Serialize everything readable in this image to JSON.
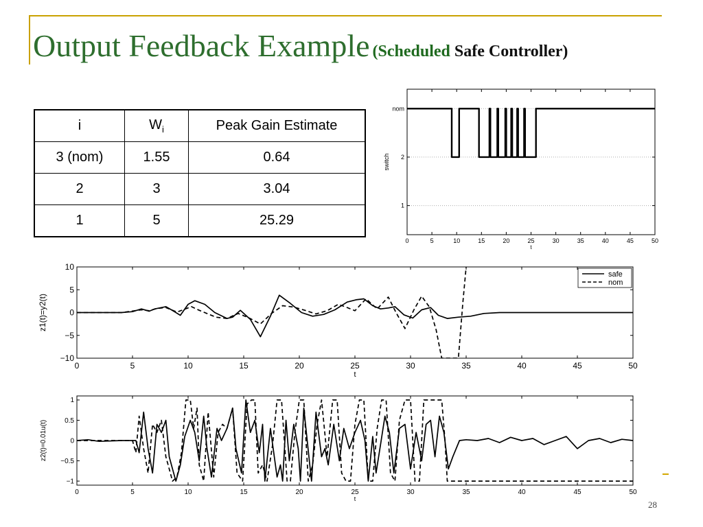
{
  "slide": {
    "title": "Output Feedback Example",
    "subtitle_open": "(",
    "subtitle_part1": "Scheduled",
    "subtitle_part2": " Safe Controller)",
    "slide_number": "28",
    "accent_color": "#c9a100",
    "title_color": "#2e6e2e"
  },
  "table": {
    "headers": [
      "i",
      "W",
      "Peak Gain Estimate"
    ],
    "header_w_subscript": "i",
    "rows": [
      [
        "3 (nom)",
        "1.55",
        "0.64"
      ],
      [
        "2",
        "3",
        "3.04"
      ],
      [
        "1",
        "5",
        "25.29"
      ]
    ]
  },
  "chart_data": [
    {
      "type": "line",
      "ylabel": "switch",
      "xlabel": "t",
      "xlim": [
        0,
        50
      ],
      "xticks": [
        0,
        5,
        10,
        15,
        20,
        25,
        30,
        35,
        40,
        45,
        50
      ],
      "yticks": [
        {
          "value": 1,
          "label": "1"
        },
        {
          "value": 2,
          "label": "2"
        },
        {
          "value": 3,
          "label": "nom"
        }
      ],
      "ylim": [
        0.4,
        3.4
      ],
      "grid": "horizontal dotted",
      "series": [
        {
          "x": [
            0,
            9,
            9,
            10.5,
            10.5,
            14.5,
            14.5,
            16.6,
            16.6,
            16.8,
            16.8,
            18.2,
            18.2,
            18.4,
            18.4,
            19.8,
            19.8,
            20,
            20,
            21,
            21,
            21.2,
            21.2,
            22.2,
            22.2,
            22.4,
            22.4,
            23.6,
            23.6,
            23.8,
            23.8,
            26,
            26,
            50
          ],
          "y": [
            3,
            3,
            2,
            2,
            3,
            3,
            2,
            2,
            3,
            3,
            2,
            2,
            3,
            3,
            2,
            2,
            3,
            3,
            2,
            2,
            3,
            3,
            2,
            2,
            3,
            3,
            2,
            2,
            3,
            3,
            2,
            2,
            3,
            3
          ]
        }
      ]
    },
    {
      "type": "line",
      "ylabel": "z1(t)=y2(t)",
      "xlabel": "t",
      "xlim": [
        0,
        50
      ],
      "ylim": [
        -10,
        10
      ],
      "xticks": [
        0,
        5,
        10,
        15,
        20,
        25,
        30,
        35,
        40,
        45,
        50
      ],
      "yticks": [
        -10,
        -5,
        0,
        5,
        10
      ],
      "legend": "top-right",
      "series": [
        {
          "name": "safe",
          "style": "solid",
          "x": [
            0,
            2,
            4,
            5,
            5.8,
            6.5,
            7,
            8,
            8.5,
            9.3,
            10,
            10.6,
            11.5,
            12.4,
            13.5,
            14,
            14.7,
            15.6,
            16.5,
            17.4,
            18.2,
            19.1,
            20.2,
            21.2,
            22.2,
            23.2,
            24.3,
            25.1,
            25.8,
            26.6,
            27.3,
            28,
            28.6,
            29.4,
            30.2,
            31,
            31.8,
            32.5,
            33.3,
            34.3,
            35.4,
            36.6,
            38,
            40,
            45,
            50
          ],
          "y": [
            0,
            0,
            0,
            0.2,
            0.8,
            0.3,
            0.8,
            1.3,
            0.6,
            -0.6,
            1.8,
            2.6,
            1.8,
            0,
            -1.3,
            -1,
            0.5,
            -1.5,
            -5.3,
            -0.8,
            3.8,
            2.2,
            0,
            -0.8,
            -0.4,
            0.6,
            2.3,
            2.8,
            3,
            1.5,
            0.8,
            1,
            1.3,
            -0.5,
            -1.2,
            0.6,
            1.1,
            -0.6,
            -1.3,
            -1,
            -0.8,
            -0.2,
            0,
            0,
            0,
            0
          ]
        },
        {
          "name": "nom",
          "style": "dashed",
          "x": [
            0,
            4,
            5.8,
            6.5,
            7.2,
            8,
            9,
            10.3,
            11,
            12.5,
            13.5,
            14.5,
            15.5,
            16.5,
            17.5,
            18.5,
            19.5,
            20.5,
            21.5,
            22.5,
            23.5,
            24.2,
            25,
            26,
            27,
            28,
            28.7,
            29.5,
            30.3,
            31,
            31.7,
            32.3,
            32.8,
            33.2,
            33.8,
            34.3,
            34.7,
            35
          ],
          "y": [
            0,
            0,
            0.6,
            0.4,
            0.9,
            1.1,
            0.1,
            1.3,
            0.5,
            -1,
            -1.3,
            -0.2,
            -1.2,
            -2.5,
            -0.2,
            1.5,
            1.2,
            0.5,
            -0.3,
            0.4,
            1.8,
            1.2,
            0.4,
            3,
            0.8,
            3.4,
            0,
            -3.5,
            0.6,
            3.6,
            1.2,
            -3.8,
            -10,
            -10,
            -10,
            -10,
            2,
            10
          ]
        }
      ]
    },
    {
      "type": "line",
      "ylabel": "z2(t)=0.01u(t)",
      "xlabel": "t",
      "xlim": [
        0,
        50
      ],
      "ylim": [
        -1.1,
        1.1
      ],
      "xticks": [
        0,
        5,
        10,
        15,
        20,
        25,
        30,
        35,
        40,
        45,
        50
      ],
      "yticks": [
        -1,
        -0.5,
        0,
        0.5,
        1
      ],
      "series": [
        {
          "name": "safe",
          "style": "solid",
          "x": [
            0,
            1,
            2,
            4,
            5,
            5.3,
            5.6,
            6,
            6.4,
            6.8,
            7.2,
            7.6,
            8,
            8.3,
            8.6,
            8.9,
            9.3,
            9.7,
            10.2,
            10.6,
            11,
            11.4,
            11.7,
            12.1,
            12.6,
            13,
            13.5,
            14,
            14.3,
            14.8,
            15.2,
            15.6,
            16,
            16.4,
            16.7,
            16.9,
            17.4,
            18,
            18.3,
            18.5,
            18.8,
            19.1,
            19.5,
            19.9,
            20.1,
            20.4,
            20.9,
            21.1,
            21.5,
            22,
            22.3,
            22.6,
            23.1,
            23.6,
            24,
            24.5,
            25,
            25.5,
            25.9,
            26.2,
            26.6,
            26.9,
            27.3,
            27.7,
            28.1,
            28.5,
            29,
            29.5,
            30,
            30.5,
            31,
            31.4,
            31.8,
            32.2,
            32.6,
            33,
            33.4,
            33.8,
            34.4,
            35,
            36,
            37,
            38,
            39,
            40,
            41,
            42,
            43,
            44,
            45,
            46,
            47,
            48,
            49,
            50
          ],
          "y": [
            0,
            0.02,
            -0.02,
            0,
            0,
            0,
            -0.3,
            0.7,
            -0.2,
            -0.8,
            0.4,
            0.2,
            0.5,
            -0.4,
            -0.7,
            -1,
            -0.6,
            0.1,
            0.5,
            0.2,
            -0.5,
            0.6,
            -0.2,
            -0.9,
            0.3,
            0,
            0.3,
            0.8,
            -0.2,
            -0.8,
            1,
            0.2,
            0.5,
            -0.3,
            0.4,
            -1,
            0.3,
            -0.9,
            -0.6,
            -1,
            0.5,
            -0.5,
            0.4,
            -0.2,
            -1,
            0.8,
            -0.5,
            -1,
            0.7,
            -0.4,
            -0.2,
            -0.6,
            0.4,
            -0.5,
            0.3,
            -0.2,
            0.2,
            0.5,
            0,
            -1,
            0.1,
            -0.8,
            -0.1,
            0.6,
            0.2,
            -0.8,
            0.3,
            0.4,
            -0.7,
            0.2,
            -0.5,
            0.4,
            0.5,
            -0.4,
            0.6,
            0.2,
            -0.7,
            -0.4,
            0,
            0.02,
            0,
            0.05,
            -0.05,
            0.08,
            0,
            0.05,
            -0.1,
            0,
            0.1,
            -0.2,
            0,
            0.05,
            -0.05,
            0.03,
            0
          ]
        },
        {
          "name": "nom",
          "style": "dashed",
          "x": [
            0,
            4,
            5,
            5.3,
            5.6,
            6,
            6.4,
            6.8,
            7.2,
            7.6,
            8,
            8.3,
            8.6,
            9,
            9.4,
            9.8,
            10.2,
            10.5,
            10.8,
            11,
            11.4,
            11.8,
            12.3,
            12.7,
            13.1,
            13.5,
            14,
            14.4,
            14.9,
            15.3,
            15.7,
            16,
            16.3,
            16.7,
            17.1,
            17.6,
            18,
            18.4,
            18.9,
            19.2,
            19.6,
            20,
            20.4,
            20.8,
            21.2,
            21.6,
            22,
            22.5,
            23,
            23.4,
            23.8,
            24.2,
            24.6,
            25,
            25.4,
            25.8,
            26.2,
            26.6,
            27,
            27.4,
            27.8,
            28.2,
            28.6,
            29,
            29.5,
            30,
            30.4,
            30.8,
            31.2,
            31.6,
            32,
            32.4,
            32.8,
            33.1,
            33.3,
            50
          ],
          "y": [
            0,
            0,
            0,
            -0.3,
            0.6,
            -0.2,
            -0.8,
            0.4,
            0.2,
            0.5,
            -0.4,
            -0.7,
            -1,
            -0.9,
            -0.3,
            1,
            1,
            0.3,
            0.8,
            -0.6,
            -1,
            0.7,
            -0.9,
            0.2,
            0.4,
            0.3,
            0.8,
            -0.8,
            -1,
            0.9,
            1,
            1,
            -0.8,
            -0.6,
            -1,
            -0.1,
            1,
            1,
            -1,
            -1,
            0.2,
            1,
            1,
            -1,
            -0.6,
            0.4,
            1,
            -0.4,
            1,
            1,
            -0.8,
            -1,
            -1,
            0.4,
            1,
            1,
            -1,
            -1,
            0.3,
            1,
            1,
            -0.8,
            -1,
            0.5,
            1,
            1,
            -1,
            -1,
            1,
            1,
            1,
            1,
            1,
            0,
            -1,
            -1
          ]
        }
      ]
    }
  ]
}
